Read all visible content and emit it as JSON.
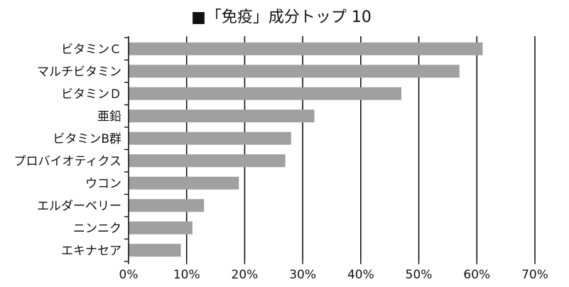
{
  "chart_data": {
    "type": "bar",
    "orientation": "horizontal",
    "title": "「免疫」成分トップ 10",
    "title_marker": "■",
    "categories": [
      "ビタミンＣ",
      "マルチビタミン",
      "ビタミンＤ",
      "亜鉛",
      "ビタミンB群",
      "プロバイオティクス",
      "ウコン",
      "エルダーベリー",
      "ニンニク",
      "エキナセア"
    ],
    "values": [
      61,
      57,
      47,
      32,
      28,
      27,
      19,
      13,
      11,
      9
    ],
    "xlim": [
      0,
      70
    ],
    "xticks": [
      0,
      10,
      20,
      30,
      40,
      50,
      60,
      70
    ],
    "xtick_labels": [
      "0%",
      "10%",
      "20%",
      "30%",
      "40%",
      "50%",
      "60%",
      "70%"
    ],
    "xlabel": "",
    "ylabel": "",
    "grid": "vertical",
    "legend": "none",
    "colors": {
      "bar": "#a0a0a0",
      "grid": "#111111",
      "text": "#111111"
    }
  }
}
